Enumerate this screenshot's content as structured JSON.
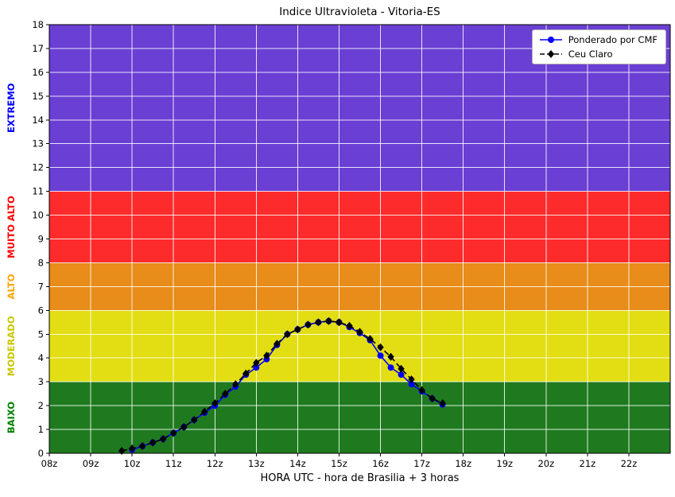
{
  "chart_data": {
    "type": "line",
    "title": "Indice Ultravioleta - Vitoria-ES",
    "xlabel": "HORA UTC - hora de Brasilia + 3 horas",
    "ylabel": "",
    "xlim": [
      8,
      23
    ],
    "ylim": [
      0,
      18
    ],
    "grid": true,
    "legend_position": "upper right",
    "x_tick_values": [
      8,
      9,
      10,
      11,
      12,
      13,
      14,
      15,
      16,
      17,
      18,
      19,
      20,
      21,
      22
    ],
    "x_tick_labels": [
      "08z",
      "09z",
      "10z",
      "11z",
      "12z",
      "13z",
      "14z",
      "15z",
      "16z",
      "17z",
      "18z",
      "19z",
      "20z",
      "21z",
      "22z"
    ],
    "y_tick_values": [
      0,
      1,
      2,
      3,
      4,
      5,
      6,
      7,
      8,
      9,
      10,
      11,
      12,
      13,
      14,
      15,
      16,
      17,
      18
    ],
    "bands": [
      {
        "label": "BAIXO",
        "from": 0,
        "to": 3,
        "color": "#1f7a1f",
        "label_color": "#008000"
      },
      {
        "label": "MODERADO",
        "from": 3,
        "to": 6,
        "color": "#e2de13",
        "label_color": "#c8c800"
      },
      {
        "label": "ALTO",
        "from": 6,
        "to": 8,
        "color": "#e88c1a",
        "label_color": "#ffa500"
      },
      {
        "label": "MUITO ALTO",
        "from": 8,
        "to": 11,
        "color": "#fd2b2b",
        "label_color": "#ff0000"
      },
      {
        "label": "EXTREMO",
        "from": 11,
        "to": 18,
        "color": "#6a3fd4",
        "label_color": "#0000ff"
      }
    ],
    "series": [
      {
        "name": "Ponderado por CMF",
        "color": "#0000ff",
        "marker": "circle",
        "dash": "solid",
        "x": [
          10.0,
          10.25,
          10.5,
          10.75,
          11.0,
          11.25,
          11.5,
          11.75,
          12.0,
          12.25,
          12.5,
          12.75,
          13.0,
          13.25,
          13.5,
          13.75,
          14.0,
          14.25,
          14.5,
          14.75,
          15.0,
          15.25,
          15.5,
          15.75,
          16.0,
          16.25,
          16.5,
          16.75,
          17.0,
          17.25,
          17.5
        ],
        "y": [
          0.15,
          0.3,
          0.45,
          0.6,
          0.85,
          1.1,
          1.4,
          1.7,
          2.0,
          2.45,
          2.8,
          3.3,
          3.6,
          3.95,
          4.55,
          5.0,
          5.2,
          5.4,
          5.5,
          5.55,
          5.5,
          5.3,
          5.05,
          4.75,
          4.1,
          3.6,
          3.3,
          2.9,
          2.6,
          2.3,
          2.05
        ]
      },
      {
        "name": "Ceu Claro",
        "color": "#000000",
        "marker": "diamond",
        "dash": "dashed",
        "x": [
          9.75,
          10.0,
          10.25,
          10.5,
          10.75,
          11.0,
          11.25,
          11.5,
          11.75,
          12.0,
          12.25,
          12.5,
          12.75,
          13.0,
          13.25,
          13.5,
          13.75,
          14.0,
          14.25,
          14.5,
          14.75,
          15.0,
          15.25,
          15.5,
          15.75,
          16.0,
          16.25,
          16.5,
          16.75,
          17.0,
          17.25,
          17.5
        ],
        "y": [
          0.1,
          0.2,
          0.3,
          0.45,
          0.6,
          0.85,
          1.1,
          1.4,
          1.75,
          2.1,
          2.5,
          2.9,
          3.35,
          3.8,
          4.1,
          4.6,
          5.0,
          5.2,
          5.4,
          5.5,
          5.55,
          5.5,
          5.35,
          5.1,
          4.8,
          4.45,
          4.05,
          3.55,
          3.1,
          2.65,
          2.3,
          2.1
        ]
      }
    ]
  }
}
